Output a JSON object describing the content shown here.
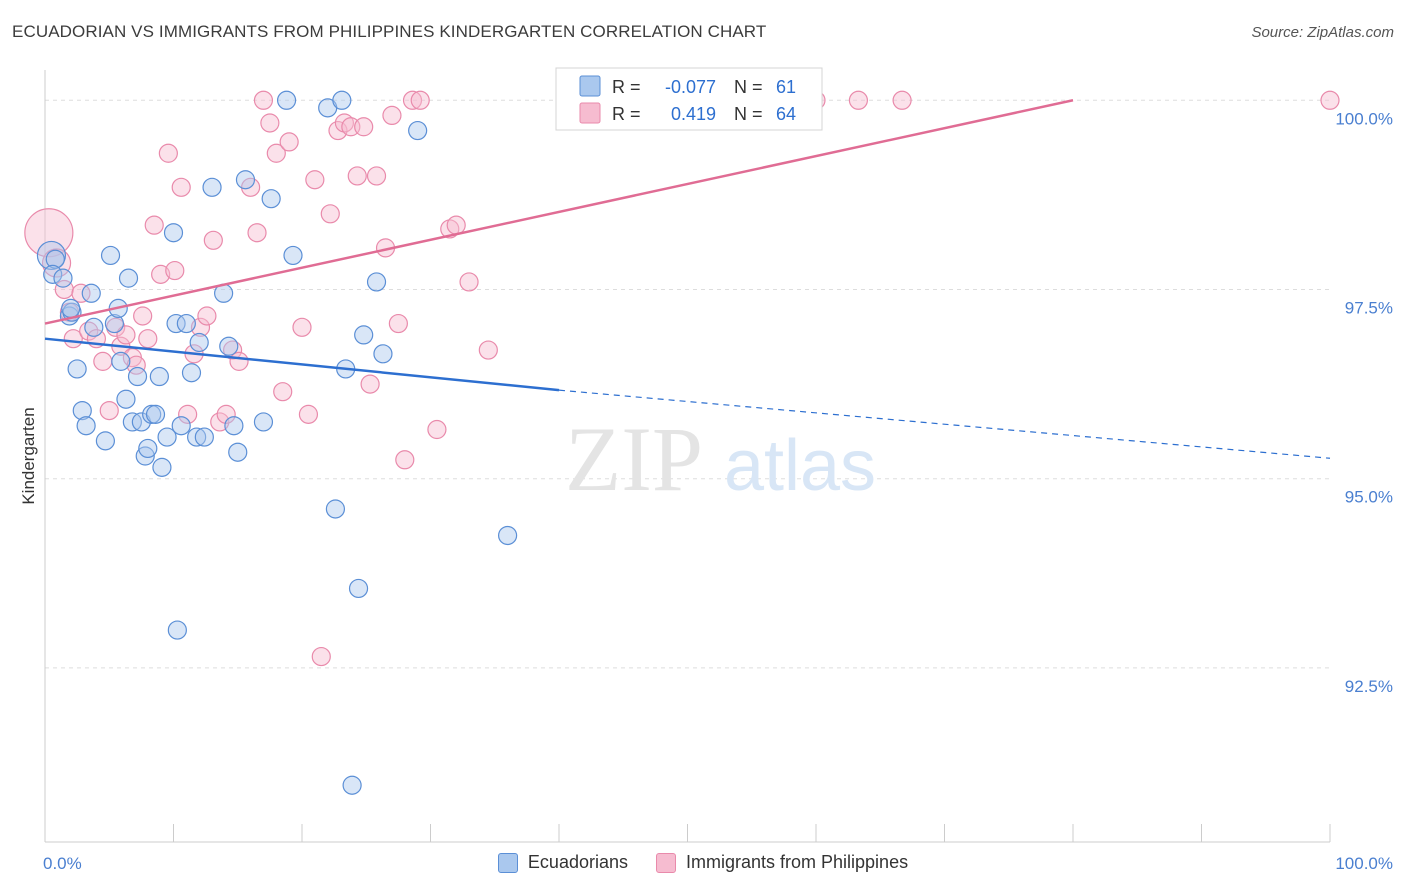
{
  "title": "ECUADORIAN VS IMMIGRANTS FROM PHILIPPINES KINDERGARTEN CORRELATION CHART",
  "source": "Source: ZipAtlas.com",
  "watermark": {
    "zip": "ZIP",
    "atlas": "atlas"
  },
  "colors": {
    "blue_fill": "#aac8ee",
    "blue_stroke": "#5b8fd6",
    "blue_line": "#2d6fd0",
    "pink_fill": "#f6bcd0",
    "pink_stroke": "#e98aab",
    "pink_line": "#e06c94",
    "axis_text": "#4a7fd0",
    "grid": "#dddddd"
  },
  "legend_box": {
    "rows": [
      {
        "r_label": "R =",
        "r_value": "-0.077",
        "n_label": "N =",
        "n_value": "61"
      },
      {
        "r_label": "R =",
        "r_value": "0.419",
        "n_label": "N =",
        "n_value": "64"
      }
    ]
  },
  "chart_data": {
    "type": "scatter",
    "title": "ECUADORIAN VS IMMIGRANTS FROM PHILIPPINES KINDERGARTEN CORRELATION CHART",
    "xlabel": "",
    "ylabel": "Kindergarten",
    "x_tick_labels": [
      "0.0%",
      "100.0%"
    ],
    "y_tick_labels": [
      "100.0%",
      "97.5%",
      "95.0%",
      "92.5%"
    ],
    "y_ticks": [
      100.0,
      97.5,
      95.0,
      92.5
    ],
    "xlim": [
      0,
      100
    ],
    "ylim": [
      90.2,
      100.4
    ],
    "grid": true,
    "legend_position": "top-center",
    "series": [
      {
        "name": "Ecuadorians",
        "r": -0.077,
        "n": 61,
        "trend": {
          "x0": 0,
          "y0": 96.85,
          "x1": 40,
          "y1": 96.17,
          "dashed_to_x": 100,
          "dashed_to_y": 95.27
        },
        "points": [
          [
            0.5,
            97.95,
            2
          ],
          [
            0.8,
            97.9,
            1
          ],
          [
            0.6,
            97.7,
            1
          ],
          [
            1.4,
            97.65,
            1
          ],
          [
            1.9,
            97.15,
            1
          ],
          [
            2.1,
            97.2,
            1
          ],
          [
            2.5,
            96.45,
            1
          ],
          [
            2.9,
            95.9,
            1
          ],
          [
            3.2,
            95.7,
            1
          ],
          [
            3.6,
            97.45,
            1
          ],
          [
            3.8,
            97.0,
            1
          ],
          [
            4.7,
            95.5,
            1
          ],
          [
            5.1,
            97.95,
            1
          ],
          [
            5.4,
            97.05,
            1
          ],
          [
            5.7,
            97.25,
            1
          ],
          [
            5.9,
            96.55,
            1
          ],
          [
            6.3,
            96.05,
            1
          ],
          [
            6.5,
            97.65,
            1
          ],
          [
            6.8,
            95.75,
            1
          ],
          [
            7.2,
            96.35,
            1
          ],
          [
            7.5,
            95.75,
            1
          ],
          [
            7.8,
            95.3,
            1
          ],
          [
            8.0,
            95.4,
            1
          ],
          [
            8.3,
            95.85,
            1
          ],
          [
            8.6,
            95.85,
            1
          ],
          [
            8.9,
            96.35,
            1
          ],
          [
            9.1,
            95.15,
            1
          ],
          [
            9.5,
            95.55,
            1
          ],
          [
            10.0,
            98.25,
            1
          ],
          [
            10.2,
            97.05,
            1
          ],
          [
            10.6,
            95.7,
            1
          ],
          [
            11.0,
            97.05,
            1
          ],
          [
            11.4,
            96.4,
            1
          ],
          [
            11.8,
            95.55,
            1
          ],
          [
            12.0,
            96.8,
            1
          ],
          [
            12.4,
            95.55,
            1
          ],
          [
            13.0,
            98.85,
            1
          ],
          [
            13.9,
            97.45,
            1
          ],
          [
            14.3,
            96.75,
            1
          ],
          [
            14.7,
            95.7,
            1
          ],
          [
            15.0,
            95.35,
            1
          ],
          [
            15.6,
            98.95,
            1
          ],
          [
            17.0,
            95.75,
            1
          ],
          [
            17.6,
            98.7,
            1
          ],
          [
            18.8,
            100.0,
            1
          ],
          [
            19.3,
            97.95,
            1
          ],
          [
            22.0,
            99.9,
            1
          ],
          [
            22.6,
            94.6,
            1
          ],
          [
            23.1,
            100.0,
            1
          ],
          [
            23.4,
            96.45,
            1
          ],
          [
            23.9,
            90.95,
            1
          ],
          [
            24.4,
            93.55,
            1
          ],
          [
            24.8,
            96.9,
            1
          ],
          [
            25.8,
            97.6,
            1
          ],
          [
            26.3,
            96.65,
            1
          ],
          [
            29.0,
            99.6,
            1
          ],
          [
            36.0,
            94.25,
            1
          ],
          [
            10.3,
            93.0,
            1
          ],
          [
            2.0,
            97.25,
            1
          ]
        ]
      },
      {
        "name": "Immigrants from Philippines",
        "r": 0.419,
        "n": 64,
        "trend": {
          "x0": 0,
          "y0": 97.05,
          "x1": 80,
          "y1": 100.0
        },
        "points": [
          [
            0.3,
            98.25,
            3
          ],
          [
            0.9,
            97.85,
            2
          ],
          [
            1.5,
            97.5,
            1
          ],
          [
            1.9,
            97.2,
            1
          ],
          [
            2.2,
            96.85,
            1
          ],
          [
            2.8,
            97.45,
            1
          ],
          [
            3.4,
            96.95,
            1
          ],
          [
            4.0,
            96.85,
            1
          ],
          [
            4.5,
            96.55,
            1
          ],
          [
            5.0,
            95.9,
            1
          ],
          [
            5.5,
            97.0,
            1
          ],
          [
            5.9,
            96.75,
            1
          ],
          [
            6.3,
            96.9,
            1
          ],
          [
            6.8,
            96.6,
            1
          ],
          [
            7.1,
            96.5,
            1
          ],
          [
            7.6,
            97.15,
            1
          ],
          [
            8.0,
            96.85,
            1
          ],
          [
            8.5,
            98.35,
            1
          ],
          [
            9.0,
            97.7,
            1
          ],
          [
            9.6,
            99.3,
            1
          ],
          [
            10.1,
            97.75,
            1
          ],
          [
            10.6,
            98.85,
            1
          ],
          [
            11.1,
            95.85,
            1
          ],
          [
            11.6,
            96.65,
            1
          ],
          [
            12.1,
            97.0,
            1
          ],
          [
            12.6,
            97.15,
            1
          ],
          [
            13.1,
            98.15,
            1
          ],
          [
            13.6,
            95.75,
            1
          ],
          [
            14.1,
            95.85,
            1
          ],
          [
            14.6,
            96.7,
            1
          ],
          [
            15.1,
            96.55,
            1
          ],
          [
            16.0,
            98.85,
            1
          ],
          [
            16.5,
            98.25,
            1
          ],
          [
            17.0,
            100.0,
            1
          ],
          [
            17.5,
            99.7,
            1
          ],
          [
            18.0,
            99.3,
            1
          ],
          [
            18.5,
            96.15,
            1
          ],
          [
            19.0,
            99.45,
            1
          ],
          [
            20.0,
            97.0,
            1
          ],
          [
            20.5,
            95.85,
            1
          ],
          [
            21.0,
            98.95,
            1
          ],
          [
            21.5,
            92.65,
            1
          ],
          [
            22.2,
            98.5,
            1
          ],
          [
            22.8,
            99.6,
            1
          ],
          [
            23.3,
            99.7,
            1
          ],
          [
            23.8,
            99.65,
            1
          ],
          [
            24.3,
            99.0,
            1
          ],
          [
            24.8,
            99.65,
            1
          ],
          [
            25.3,
            96.25,
            1
          ],
          [
            25.8,
            99.0,
            1
          ],
          [
            26.5,
            98.05,
            1
          ],
          [
            27.0,
            99.8,
            1
          ],
          [
            27.5,
            97.05,
            1
          ],
          [
            28.0,
            95.25,
            1
          ],
          [
            28.6,
            100.0,
            1
          ],
          [
            29.2,
            100.0,
            1
          ],
          [
            30.5,
            95.65,
            1
          ],
          [
            31.5,
            98.3,
            1
          ],
          [
            32.0,
            98.35,
            1
          ],
          [
            33.0,
            97.6,
            1
          ],
          [
            34.5,
            96.7,
            1
          ],
          [
            60.0,
            100.0,
            1
          ],
          [
            63.3,
            100.0,
            1
          ],
          [
            66.7,
            100.0,
            1
          ],
          [
            100.0,
            100.0,
            1
          ]
        ]
      }
    ]
  }
}
